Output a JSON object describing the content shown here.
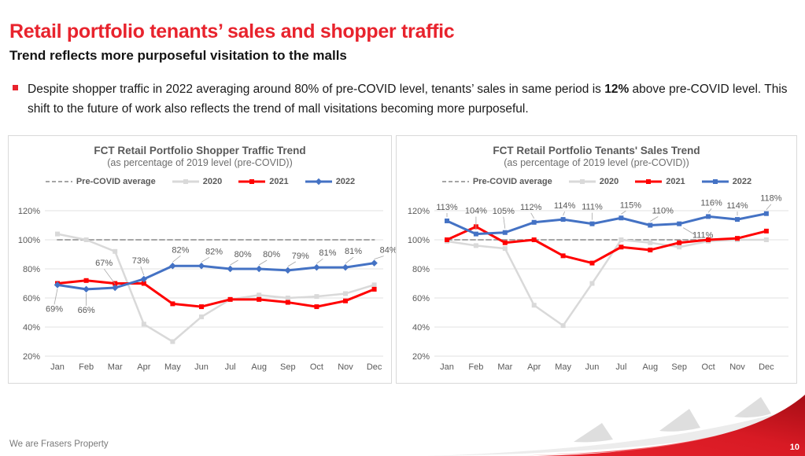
{
  "slide": {
    "title": "Retail portfolio tenants’ sales and shopper traffic",
    "subtitle": "Trend reflects more purposeful visitation to the malls",
    "bullet": {
      "pre": "Despite shopper traffic in 2022 averaging around 80% of pre-COVID level, tenants’ sales in same period is ",
      "bold": "12%",
      "post": " above pre-COVID level. This shift to the future of work also reflects the trend of mall visitations becoming more purposeful."
    },
    "footer": "We are Frasers Property",
    "page_number": "10"
  },
  "colors": {
    "accent_red": "#e8232d",
    "chart_blue": "#4472c4",
    "chart_red": "#ff0000",
    "chart_gray_2020": "#d9d9d9",
    "avg_dash_gray": "#a6a6a6",
    "axis_text_gray": "#595959",
    "gridline_gray": "#e2e2e2"
  },
  "chart_data": [
    {
      "type": "line",
      "title": "FCT Retail Portfolio Shopper Traffic Trend",
      "subtitle": "(as percentage of 2019 level (pre-COVID))",
      "categories": [
        "Jan",
        "Feb",
        "Mar",
        "Apr",
        "May",
        "Jun",
        "Jul",
        "Aug",
        "Sep",
        "Oct",
        "Nov",
        "Dec"
      ],
      "ylim": [
        20,
        120
      ],
      "yticks": [
        120,
        100,
        80,
        60,
        40,
        20
      ],
      "ytick_suffix": "%",
      "grid": true,
      "legend_position": "top",
      "series": [
        {
          "name": "Pre-COVID average",
          "line_style": "dashed",
          "color": "#a6a6a6",
          "marker": "none",
          "values": [
            100,
            100,
            100,
            100,
            100,
            100,
            100,
            100,
            100,
            100,
            100,
            100
          ]
        },
        {
          "name": "2020",
          "line_style": "solid",
          "color": "#d9d9d9",
          "marker": "square",
          "values": [
            104,
            100,
            92,
            42,
            30,
            47,
            59,
            62,
            60,
            61,
            63,
            69
          ]
        },
        {
          "name": "2021",
          "line_style": "solid",
          "color": "#ff0000",
          "marker": "square",
          "values": [
            70,
            72,
            70,
            70,
            56,
            54,
            59,
            59,
            57,
            54,
            58,
            66
          ]
        },
        {
          "name": "2022",
          "line_style": "solid",
          "color": "#4472c4",
          "marker": "diamond",
          "values": [
            69,
            66,
            67,
            73,
            82,
            82,
            80,
            80,
            79,
            81,
            81,
            84
          ],
          "labels": [
            "69%",
            "66%",
            "67%",
            "73%",
            "82%",
            "82%",
            "80%",
            "80%",
            "79%",
            "81%",
            "81%",
            "84%"
          ],
          "label_offsets": [
            [
              -4,
              34
            ],
            [
              0,
              30
            ],
            [
              -14,
              -28
            ],
            [
              -4,
              -20
            ],
            [
              10,
              -17
            ],
            [
              16,
              -15
            ],
            [
              16,
              -15
            ],
            [
              16,
              -15
            ],
            [
              16,
              -15
            ],
            [
              14,
              -15
            ],
            [
              10,
              -17
            ],
            [
              18,
              -13
            ]
          ]
        }
      ]
    },
    {
      "type": "line",
      "title": "FCT Retail Portfolio Tenants' Sales Trend",
      "subtitle": "(as percentage of 2019 level (pre-COVID))",
      "categories": [
        "Jan",
        "Feb",
        "Mar",
        "Apr",
        "May",
        "Jun",
        "Jul",
        "Aug",
        "Sep",
        "Oct",
        "Nov",
        "Dec"
      ],
      "ylim": [
        20,
        120
      ],
      "yticks": [
        120,
        100,
        80,
        60,
        40,
        20
      ],
      "ytick_suffix": "%",
      "grid": true,
      "legend_position": "top",
      "series": [
        {
          "name": "Pre-COVID average",
          "line_style": "dashed",
          "color": "#a6a6a6",
          "marker": "none",
          "values": [
            100,
            100,
            100,
            100,
            100,
            100,
            100,
            100,
            100,
            100,
            100,
            100
          ]
        },
        {
          "name": "2020",
          "line_style": "solid",
          "color": "#d9d9d9",
          "marker": "square",
          "values": [
            99,
            96,
            94,
            55,
            41,
            70,
            100,
            98,
            95,
            99,
            100,
            100
          ]
        },
        {
          "name": "2021",
          "line_style": "solid",
          "color": "#ff0000",
          "marker": "square",
          "values": [
            100,
            109,
            98,
            100,
            89,
            84,
            95,
            93,
            98,
            100,
            101,
            106
          ]
        },
        {
          "name": "2022",
          "line_style": "solid",
          "color": "#4472c4",
          "marker": "square",
          "values": [
            113,
            104,
            105,
            112,
            114,
            111,
            115,
            110,
            111,
            116,
            114,
            118
          ],
          "labels": [
            "113%",
            "104%",
            "105%",
            "112%",
            "114%",
            "111%",
            "115%",
            "110%",
            "111%",
            "116%",
            "114%",
            "118%"
          ],
          "label_offsets": [
            [
              0,
              -14
            ],
            [
              0,
              -26
            ],
            [
              -2,
              -24
            ],
            [
              -4,
              -16
            ],
            [
              2,
              -14
            ],
            [
              0,
              -18
            ],
            [
              12,
              -13
            ],
            [
              16,
              -15
            ],
            [
              30,
              18
            ],
            [
              4,
              -14
            ],
            [
              0,
              -14
            ],
            [
              6,
              -16
            ]
          ]
        }
      ]
    }
  ]
}
